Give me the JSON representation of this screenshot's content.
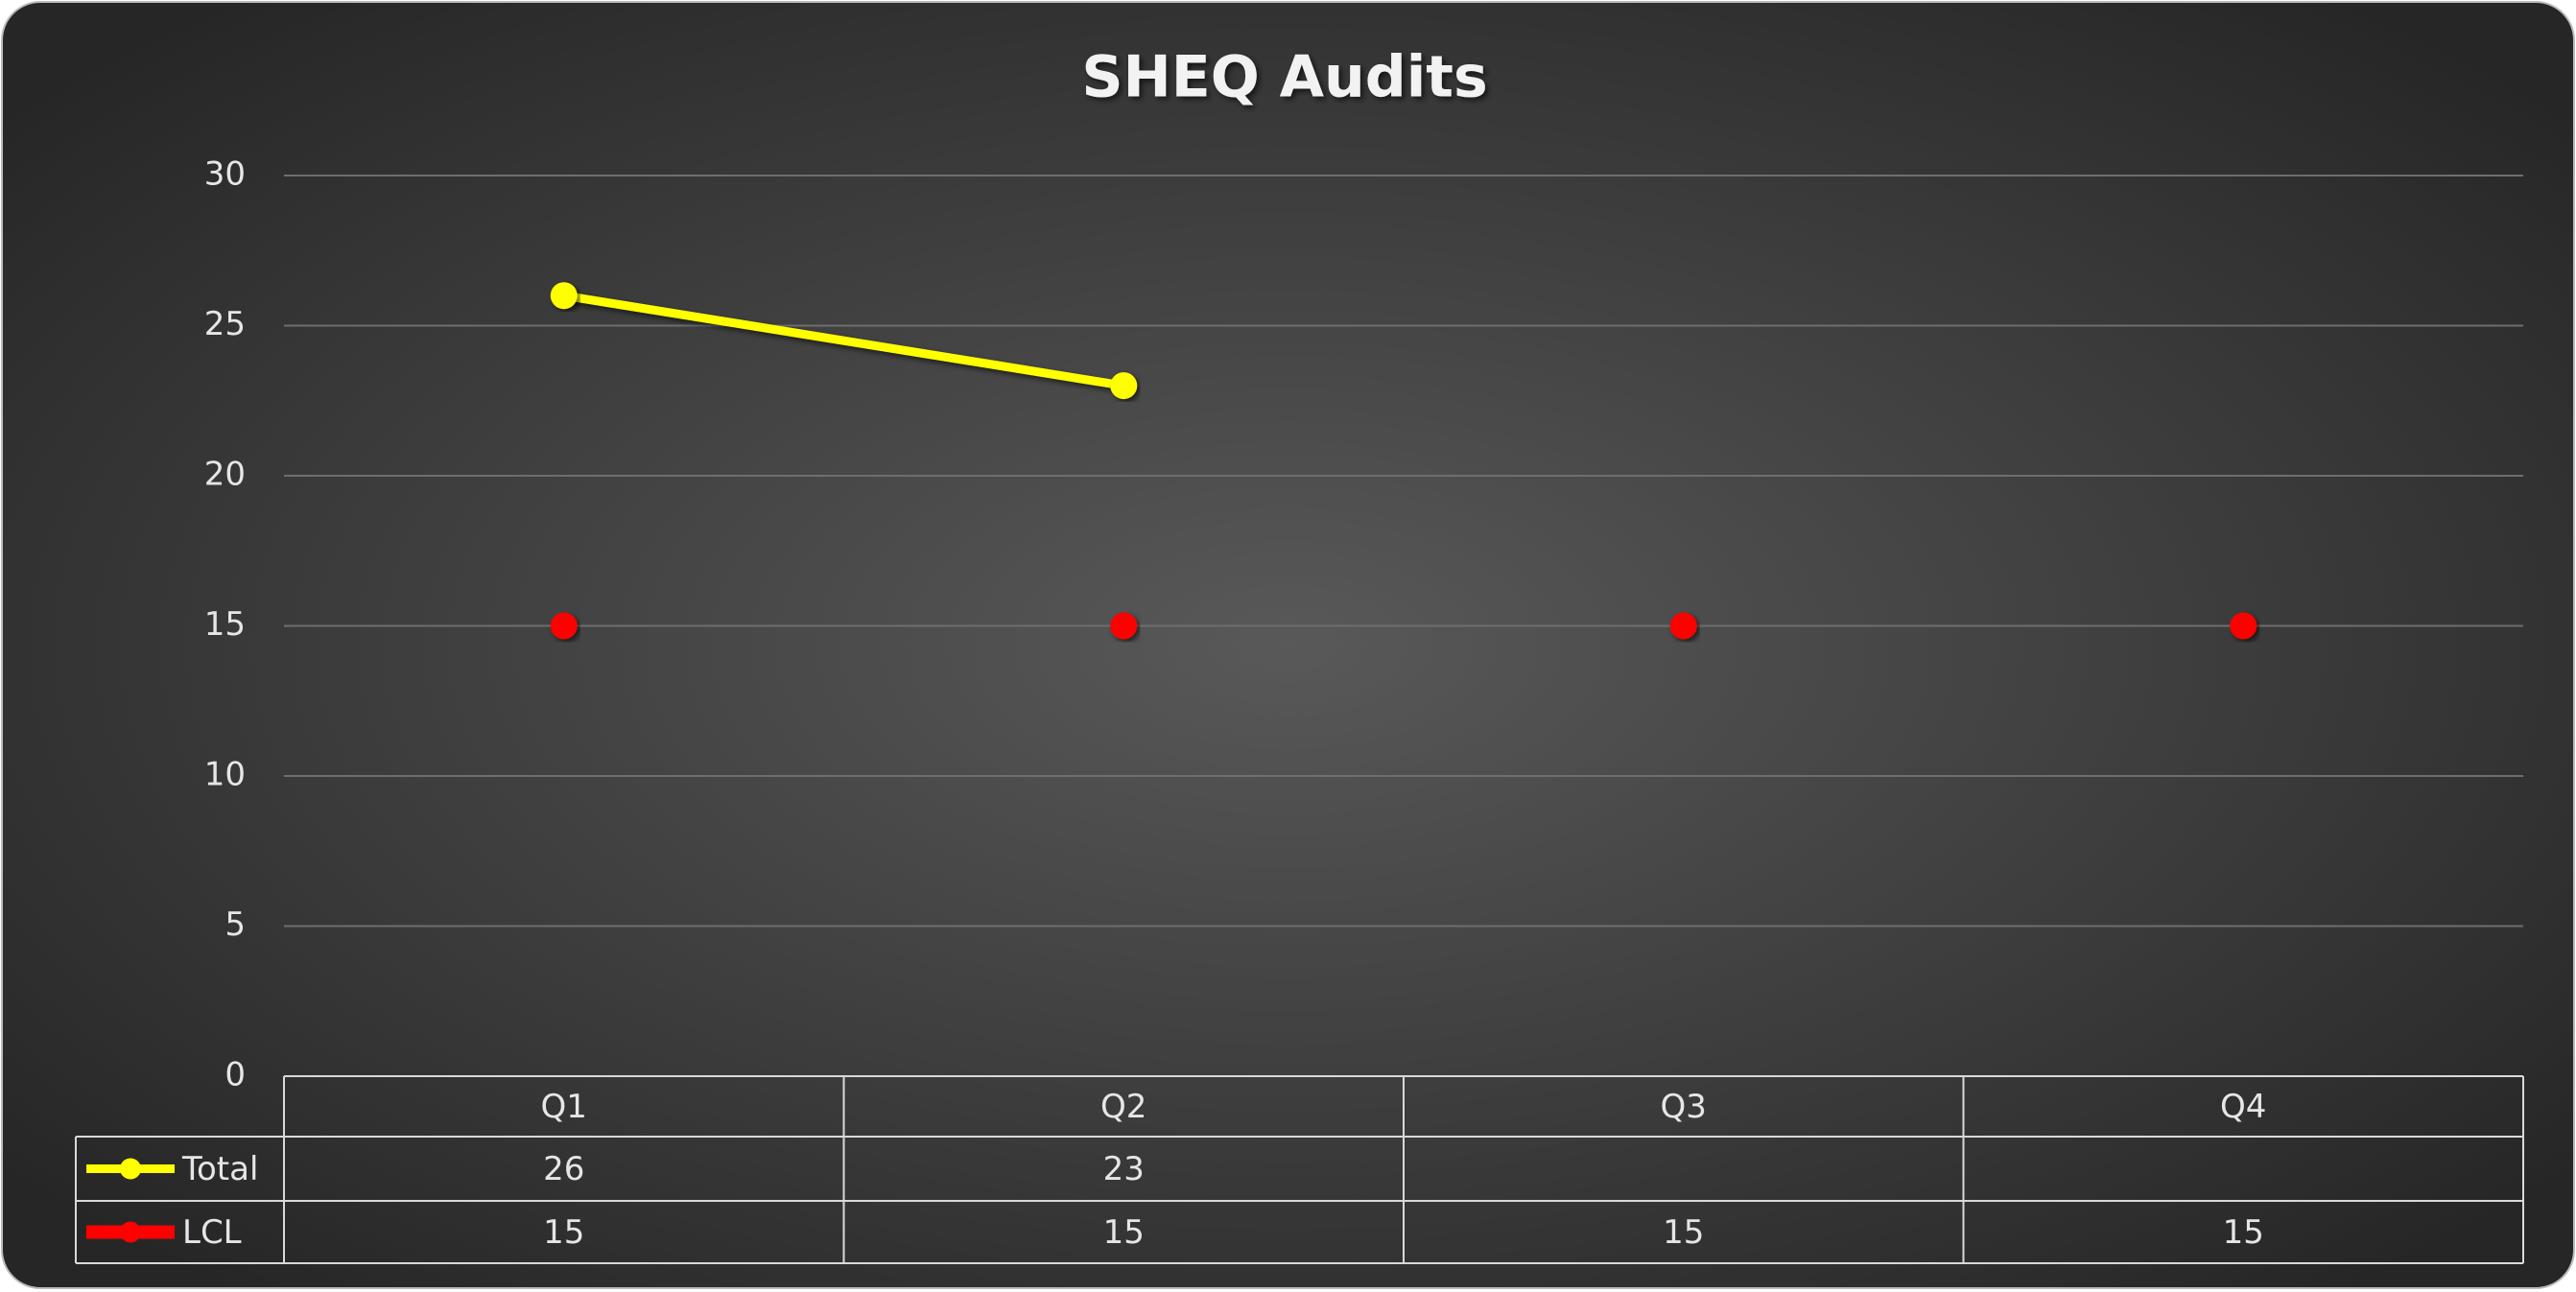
{
  "chart_data": {
    "type": "line",
    "title": "SHEQ Audits",
    "categories": [
      "Q1",
      "Q2",
      "Q3",
      "Q4"
    ],
    "series": [
      {
        "name": "Total",
        "color": "#ffff00",
        "values": [
          26,
          23,
          null,
          null
        ]
      },
      {
        "name": "LCL",
        "color": "#ff0000",
        "values": [
          15,
          15,
          15,
          15
        ]
      }
    ],
    "ylim": [
      0,
      30
    ],
    "yticks": [
      0,
      5,
      10,
      15,
      20,
      25,
      30
    ],
    "grid": true
  }
}
